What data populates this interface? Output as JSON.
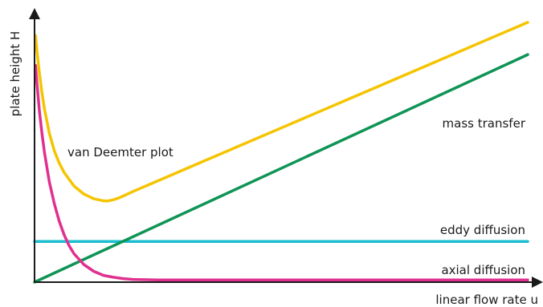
{
  "chart_data": {
    "type": "line",
    "title": "",
    "xlabel": "linear flow rate u",
    "ylabel": "plate height H",
    "xlim": [
      0,
      100
    ],
    "ylim": [
      0,
      100
    ],
    "grid": false,
    "series": [
      {
        "name": "van Deemter plot",
        "color": "#f5c400",
        "x": [
          0.2,
          0.5,
          1,
          1.5,
          2,
          3,
          4,
          5,
          6,
          8,
          10,
          12,
          14,
          15,
          16,
          17,
          18,
          20,
          25,
          30,
          40,
          50,
          60,
          70,
          80,
          90,
          100
        ],
        "y": [
          91,
          85,
          77,
          70,
          64,
          55,
          48.5,
          44,
          40.5,
          35.5,
          32.5,
          30.8,
          30,
          30,
          30.4,
          31,
          31.8,
          33.5,
          37.4,
          41.3,
          49.1,
          56.9,
          64.7,
          72.5,
          80.3,
          88.1,
          95.9
        ]
      },
      {
        "name": "mass transfer",
        "color": "#0e9455",
        "x": [
          0,
          100
        ],
        "y": [
          0,
          84
        ]
      },
      {
        "name": "eddy diffusion",
        "color": "#1bbdd0",
        "x": [
          0,
          100
        ],
        "y": [
          15,
          15
        ]
      },
      {
        "name": "axial diffusion",
        "color": "#e0308f",
        "x": [
          0.2,
          0.5,
          1,
          1.5,
          2,
          3,
          4,
          5,
          6,
          7,
          8,
          10,
          12,
          14,
          16,
          18,
          20,
          25,
          30,
          40,
          60,
          80,
          100
        ],
        "y": [
          80,
          73,
          63,
          55,
          48,
          37,
          29,
          22.5,
          17.5,
          13.5,
          10.5,
          6.5,
          4,
          2.5,
          1.8,
          1.3,
          1,
          0.8,
          0.8,
          0.8,
          0.8,
          0.8,
          0.8
        ]
      }
    ]
  },
  "labels": {
    "van_deemter": "van Deemter plot",
    "mass_transfer": "mass transfer",
    "eddy_diffusion": "eddy diffusion",
    "axial_diffusion": "axial diffusion"
  }
}
